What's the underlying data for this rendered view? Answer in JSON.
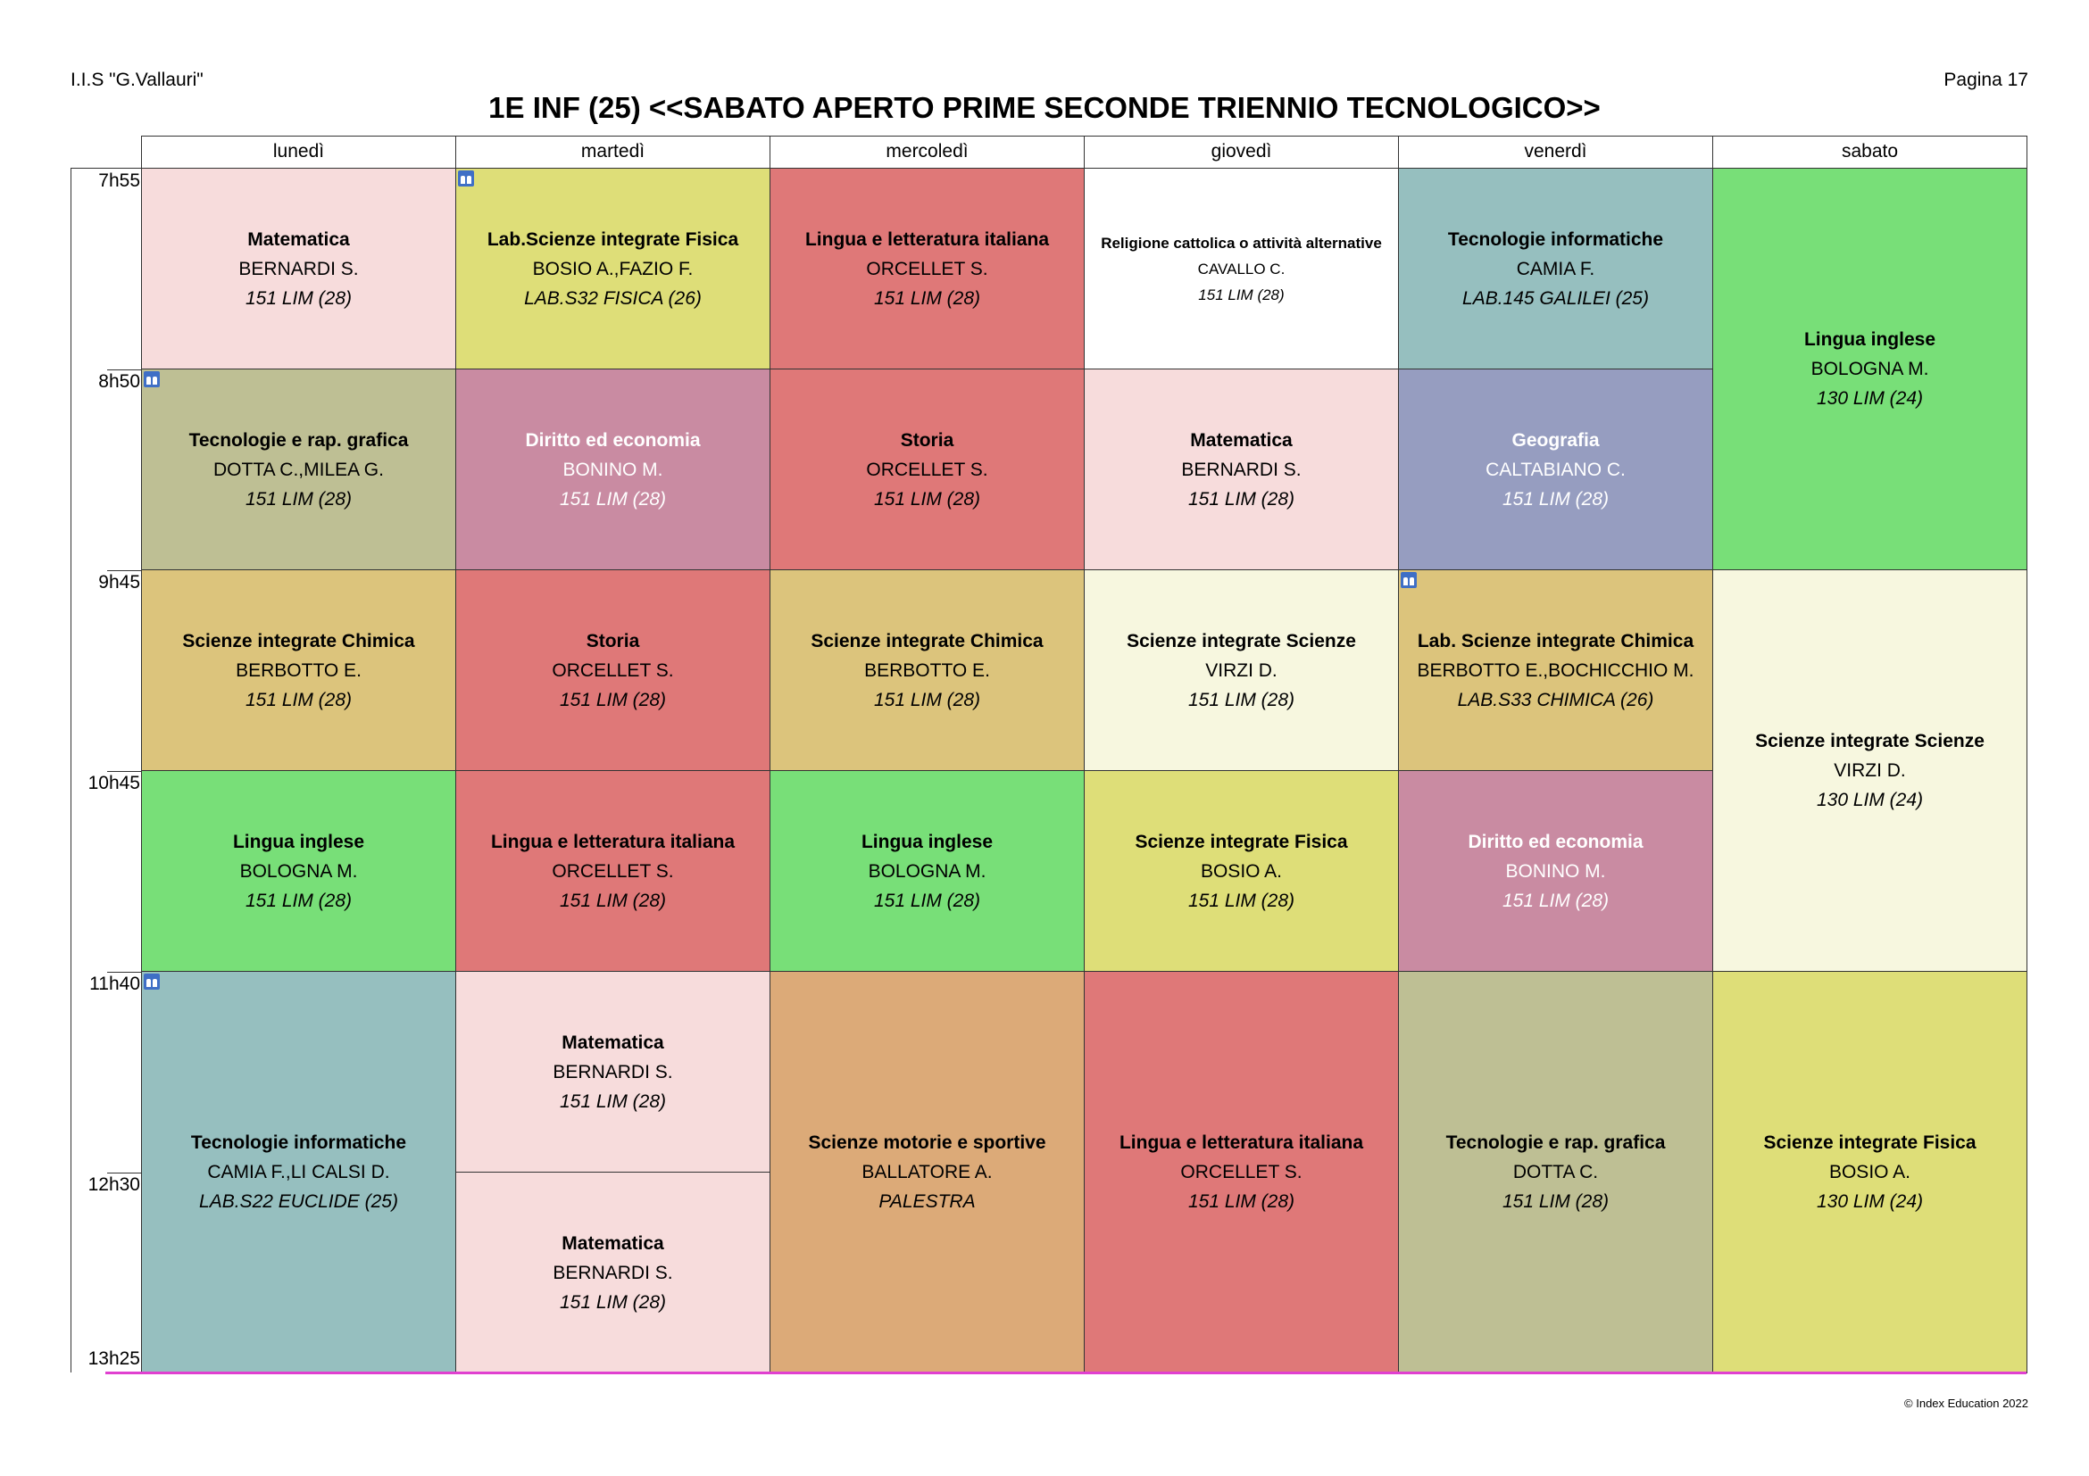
{
  "header": {
    "school": "I.I.S \"G.Vallauri\"",
    "page": "Pagina 17",
    "title": "1E INF (25) <<SABATO APERTO PRIME SECONDE TRIENNIO TECNOLOGICO>>",
    "footer": "© Index Education 2022"
  },
  "days": [
    "lunedì",
    "martedì",
    "mercoledì",
    "giovedì",
    "venerdì",
    "sabato"
  ],
  "times": [
    "7h55",
    "8h50",
    "9h45",
    "10h45",
    "11h40",
    "12h30",
    "13h25"
  ],
  "lessons": [
    {
      "day": 0,
      "start": 0,
      "span": 1,
      "subject": "Matematica",
      "teacher": "BERNARDI S.",
      "room": "151 LIM (28)",
      "color": "#f7dcdc",
      "light": false,
      "group_icon": false,
      "small": false
    },
    {
      "day": 0,
      "start": 1,
      "span": 1,
      "subject": "Tecnologie  e rap. grafica",
      "teacher": "DOTTA C.,MILEA G.",
      "room": "151 LIM (28)",
      "color": "#bebf94",
      "light": false,
      "group_icon": true,
      "small": false
    },
    {
      "day": 0,
      "start": 2,
      "span": 1,
      "subject": "Scienze integrate Chimica",
      "teacher": "BERBOTTO E.",
      "room": "151 LIM (28)",
      "color": "#dcc47c",
      "light": false,
      "group_icon": false,
      "small": false
    },
    {
      "day": 0,
      "start": 3,
      "span": 1,
      "subject": "Lingua inglese",
      "teacher": "BOLOGNA M.",
      "room": "151 LIM (28)",
      "color": "#78df78",
      "light": false,
      "group_icon": false,
      "small": false
    },
    {
      "day": 0,
      "start": 4,
      "span": 2,
      "subject": "Tecnologie informatiche",
      "teacher": "CAMIA F.,LI CALSI D.",
      "room": "LAB.S22 EUCLIDE (25)",
      "color": "#96bfbf",
      "light": false,
      "group_icon": true,
      "small": false
    },
    {
      "day": 1,
      "start": 0,
      "span": 1,
      "subject": "Lab.Scienze integrate Fisica",
      "teacher": "BOSIO A.,FAZIO F.",
      "room": "LAB.S32 FISICA (26)",
      "color": "#dede78",
      "light": false,
      "group_icon": true,
      "small": false
    },
    {
      "day": 1,
      "start": 1,
      "span": 1,
      "subject": "Diritto ed economia",
      "teacher": "BONINO M.",
      "room": "151 LIM (28)",
      "color": "#c98ba2",
      "light": true,
      "group_icon": false,
      "small": false
    },
    {
      "day": 1,
      "start": 2,
      "span": 1,
      "subject": "Storia",
      "teacher": "ORCELLET S.",
      "room": "151 LIM (28)",
      "color": "#df7878",
      "light": false,
      "group_icon": false,
      "small": false
    },
    {
      "day": 1,
      "start": 3,
      "span": 1,
      "subject": "Lingua e letteratura italiana",
      "teacher": "ORCELLET S.",
      "room": "151 LIM (28)",
      "color": "#df7878",
      "light": false,
      "group_icon": false,
      "small": false
    },
    {
      "day": 1,
      "start": 4,
      "span": 1,
      "subject": "Matematica",
      "teacher": "BERNARDI S.",
      "room": "151 LIM (28)",
      "color": "#f7dcdc",
      "light": false,
      "group_icon": false,
      "small": false
    },
    {
      "day": 1,
      "start": 5,
      "span": 1,
      "subject": "Matematica",
      "teacher": "BERNARDI S.",
      "room": "151 LIM (28)",
      "color": "#f7dcdc",
      "light": false,
      "group_icon": false,
      "small": false
    },
    {
      "day": 2,
      "start": 0,
      "span": 1,
      "subject": "Lingua e letteratura italiana",
      "teacher": "ORCELLET S.",
      "room": "151 LIM (28)",
      "color": "#df7878",
      "light": false,
      "group_icon": false,
      "small": false
    },
    {
      "day": 2,
      "start": 1,
      "span": 1,
      "subject": "Storia",
      "teacher": "ORCELLET S.",
      "room": "151 LIM (28)",
      "color": "#df7878",
      "light": false,
      "group_icon": false,
      "small": false
    },
    {
      "day": 2,
      "start": 2,
      "span": 1,
      "subject": "Scienze integrate Chimica",
      "teacher": "BERBOTTO E.",
      "room": "151 LIM (28)",
      "color": "#dcc47c",
      "light": false,
      "group_icon": false,
      "small": false
    },
    {
      "day": 2,
      "start": 3,
      "span": 1,
      "subject": "Lingua inglese",
      "teacher": "BOLOGNA M.",
      "room": "151 LIM (28)",
      "color": "#78df78",
      "light": false,
      "group_icon": false,
      "small": false
    },
    {
      "day": 2,
      "start": 4,
      "span": 2,
      "subject": "Scienze motorie e sportive",
      "teacher": "BALLATORE A.",
      "room": "PALESTRA",
      "color": "#dcaa78",
      "light": false,
      "group_icon": false,
      "small": false
    },
    {
      "day": 3,
      "start": 0,
      "span": 1,
      "subject": "Religione cattolica o attività alternative",
      "teacher": "CAVALLO C.",
      "room": "151 LIM (28)",
      "color": "#ffffff",
      "light": false,
      "group_icon": false,
      "small": true
    },
    {
      "day": 3,
      "start": 1,
      "span": 1,
      "subject": "Matematica",
      "teacher": "BERNARDI S.",
      "room": "151 LIM (28)",
      "color": "#f7dcdc",
      "light": false,
      "group_icon": false,
      "small": false
    },
    {
      "day": 3,
      "start": 2,
      "span": 1,
      "subject": "Scienze integrate Scienze",
      "teacher": "VIRZI D.",
      "room": "151 LIM (28)",
      "color": "#f7f7df",
      "light": false,
      "group_icon": false,
      "small": false
    },
    {
      "day": 3,
      "start": 3,
      "span": 1,
      "subject": "Scienze integrate Fisica",
      "teacher": "BOSIO A.",
      "room": "151 LIM (28)",
      "color": "#dede78",
      "light": false,
      "group_icon": false,
      "small": false
    },
    {
      "day": 3,
      "start": 4,
      "span": 2,
      "subject": "Lingua e letteratura italiana",
      "teacher": "ORCELLET S.",
      "room": "151 LIM (28)",
      "color": "#df7878",
      "light": false,
      "group_icon": false,
      "small": false
    },
    {
      "day": 4,
      "start": 0,
      "span": 1,
      "subject": "Tecnologie informatiche",
      "teacher": "CAMIA F.",
      "room": "LAB.145 GALILEI (25)",
      "color": "#96bfbf",
      "light": false,
      "group_icon": false,
      "small": false
    },
    {
      "day": 4,
      "start": 1,
      "span": 1,
      "subject": "Geografia",
      "teacher": "CALTABIANO C.",
      "room": "151 LIM (28)",
      "color": "#969dc0",
      "light": true,
      "group_icon": false,
      "small": false
    },
    {
      "day": 4,
      "start": 2,
      "span": 1,
      "subject": "Lab. Scienze integrate Chimica",
      "teacher": "BERBOTTO E.,BOCHICCHIO M.",
      "room": "LAB.S33 CHIMICA (26)",
      "color": "#dcc47c",
      "light": false,
      "group_icon": true,
      "small": false
    },
    {
      "day": 4,
      "start": 3,
      "span": 1,
      "subject": "Diritto ed economia",
      "teacher": "BONINO M.",
      "room": "151 LIM (28)",
      "color": "#c98ba2",
      "light": true,
      "group_icon": false,
      "small": false
    },
    {
      "day": 4,
      "start": 4,
      "span": 2,
      "subject": "Tecnologie  e rap. grafica",
      "teacher": "DOTTA C.",
      "room": "151 LIM (28)",
      "color": "#bebf94",
      "light": false,
      "group_icon": false,
      "small": false
    },
    {
      "day": 5,
      "start": 0,
      "span": 2,
      "subject": "Lingua inglese",
      "teacher": "BOLOGNA M.",
      "room": "130 LIM (24)",
      "color": "#78df78",
      "light": false,
      "group_icon": false,
      "small": false
    },
    {
      "day": 5,
      "start": 2,
      "span": 2,
      "subject": "Scienze integrate Scienze",
      "teacher": "VIRZI D.",
      "room": "130 LIM (24)",
      "color": "#f7f7df",
      "light": false,
      "group_icon": false,
      "small": false
    },
    {
      "day": 5,
      "start": 4,
      "span": 2,
      "subject": "Scienze integrate Fisica",
      "teacher": "BOSIO A.",
      "room": "130 LIM (24)",
      "color": "#dede78",
      "light": false,
      "group_icon": false,
      "small": false
    }
  ]
}
